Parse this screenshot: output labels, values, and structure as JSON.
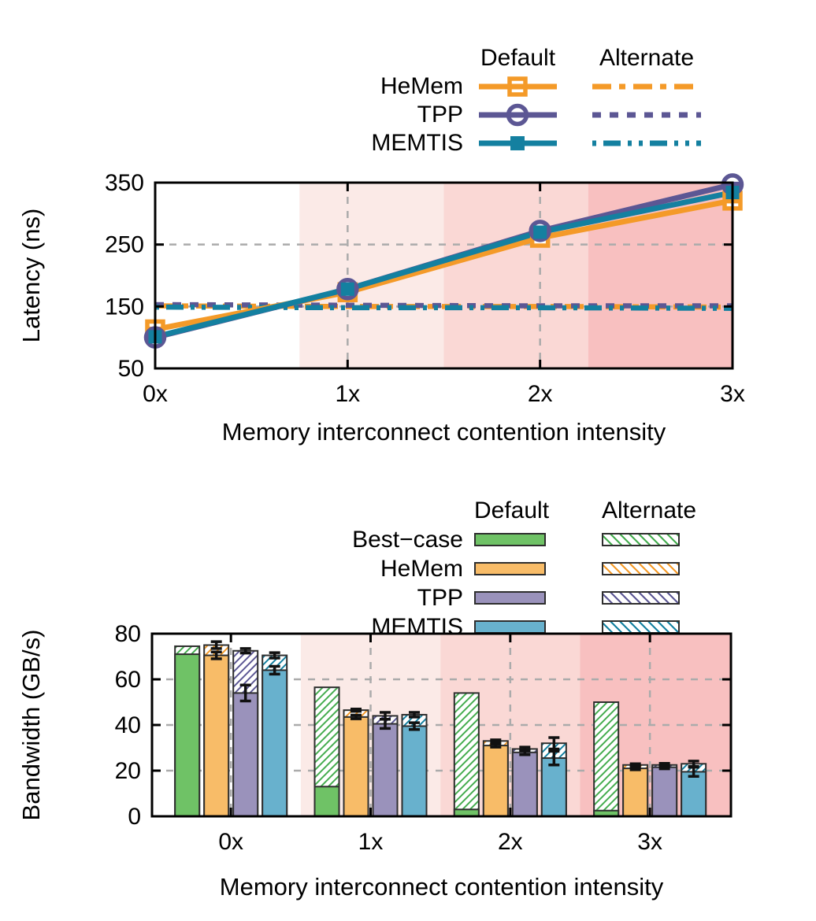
{
  "figure": {
    "legend_headers": [
      "Default",
      "Alternate"
    ],
    "xlabel": "Memory interconnect contention intensity"
  },
  "chart_data": [
    {
      "type": "line",
      "title": "",
      "xlabel": "Memory interconnect contention intensity",
      "ylabel": "Latency (ns)",
      "x": [
        0,
        1,
        2,
        3
      ],
      "x_tick_labels": [
        "0x",
        "1x",
        "2x",
        "3x"
      ],
      "xlim": [
        0,
        3
      ],
      "ylim": [
        50,
        350
      ],
      "yticks": [
        50,
        150,
        250,
        350
      ],
      "grid": {
        "y": [
          150,
          250
        ],
        "x": [
          1,
          2
        ],
        "color": "#ababab"
      },
      "shading": [
        {
          "from": 0.75,
          "to": 1.5,
          "color": "#fbeae7"
        },
        {
          "from": 1.5,
          "to": 2.25,
          "color": "#fad8d5"
        },
        {
          "from": 2.25,
          "to": 3.0,
          "color": "#f8c0c0"
        }
      ],
      "legend": {
        "headers": [
          "Default",
          "Alternate"
        ],
        "entries": [
          "HeMem",
          "TPP",
          "MEMTIS"
        ]
      },
      "series": [
        {
          "name": "HeMem",
          "variant": "alternate",
          "color": "#f49a28",
          "dash": "24 10 8 10",
          "values": [
            151,
            150,
            150,
            149
          ]
        },
        {
          "name": "TPP",
          "variant": "alternate",
          "color": "#5c5794",
          "dash": "11 11",
          "values": [
            153,
            152,
            151,
            151
          ]
        },
        {
          "name": "MEMTIS",
          "variant": "alternate",
          "color": "#1480a0",
          "dash": "5 9 22 9 5 9",
          "values": [
            149,
            148,
            148,
            147
          ]
        },
        {
          "name": "HeMem",
          "variant": "default",
          "marker": "open-square",
          "color": "#f49a28",
          "values": [
            113,
            173,
            261,
            321
          ]
        },
        {
          "name": "TPP",
          "variant": "default",
          "marker": "open-circle",
          "color": "#5c5794",
          "values": [
            100,
            178,
            272,
            347
          ]
        },
        {
          "name": "MEMTIS",
          "variant": "default",
          "marker": "filled-square",
          "color": "#1480a0",
          "values": [
            101,
            178,
            270,
            334
          ]
        }
      ]
    },
    {
      "type": "bar",
      "title": "",
      "xlabel": "Memory interconnect contention intensity",
      "ylabel": "Bandwidth (GB/s)",
      "categories": [
        "0x",
        "1x",
        "2x",
        "3x"
      ],
      "xlim": [
        -0.565,
        3.58
      ],
      "ylim": [
        0,
        80
      ],
      "yticks": [
        0,
        20,
        40,
        60,
        80
      ],
      "grid": {
        "y": [
          20,
          40,
          60
        ],
        "x": [
          0,
          1,
          2,
          3
        ],
        "color": "#ababab"
      },
      "shading": [
        {
          "from": 0.5,
          "to": 1.5,
          "color": "#fbeae7"
        },
        {
          "from": 1.5,
          "to": 2.5,
          "color": "#fad8d5"
        },
        {
          "from": 2.5,
          "to": 3.58,
          "color": "#f8c0c0"
        }
      ],
      "legend": {
        "headers": [
          "Default",
          "Alternate"
        ],
        "entries": [
          "Best−case",
          "HeMem",
          "TPP",
          "MEMTIS"
        ]
      },
      "series": [
        {
          "name": "Best−case",
          "fill": "#6fc266",
          "hatch": "#44ac4e",
          "default": [
            71,
            13,
            3,
            2.5
          ],
          "default_err": null,
          "alternate": [
            74.5,
            56.5,
            54,
            50
          ],
          "alternate_err": null
        },
        {
          "name": "HeMem",
          "fill": "#f8bc68",
          "hatch": "#f49a28",
          "default": [
            70.5,
            43.5,
            31,
            21
          ],
          "default_err": [
            1.5,
            0.8,
            0.7,
            0.6
          ],
          "alternate": [
            75,
            46.5,
            33,
            22.5
          ],
          "alternate_err": [
            1.5,
            0.5,
            0.5,
            0.5
          ]
        },
        {
          "name": "TPP",
          "fill": "#9a92bb",
          "hatch": "#5c5794",
          "default": [
            54,
            40.5,
            28,
            21.5
          ],
          "default_err": [
            3.5,
            2,
            1,
            0.7
          ],
          "alternate": [
            72.5,
            44,
            29.5,
            22.5
          ],
          "alternate_err": [
            1,
            1.5,
            0.8,
            0.7
          ]
        },
        {
          "name": "MEMTIS",
          "fill": "#68b1cd",
          "hatch": "#1480a0",
          "default": [
            64,
            39.5,
            25.5,
            19.5
          ],
          "default_err": [
            1.7,
            1.5,
            3,
            2
          ],
          "alternate": [
            70.5,
            44.5,
            32,
            23
          ],
          "alternate_err": [
            1.2,
            1,
            2.5,
            1.2
          ]
        }
      ]
    }
  ]
}
